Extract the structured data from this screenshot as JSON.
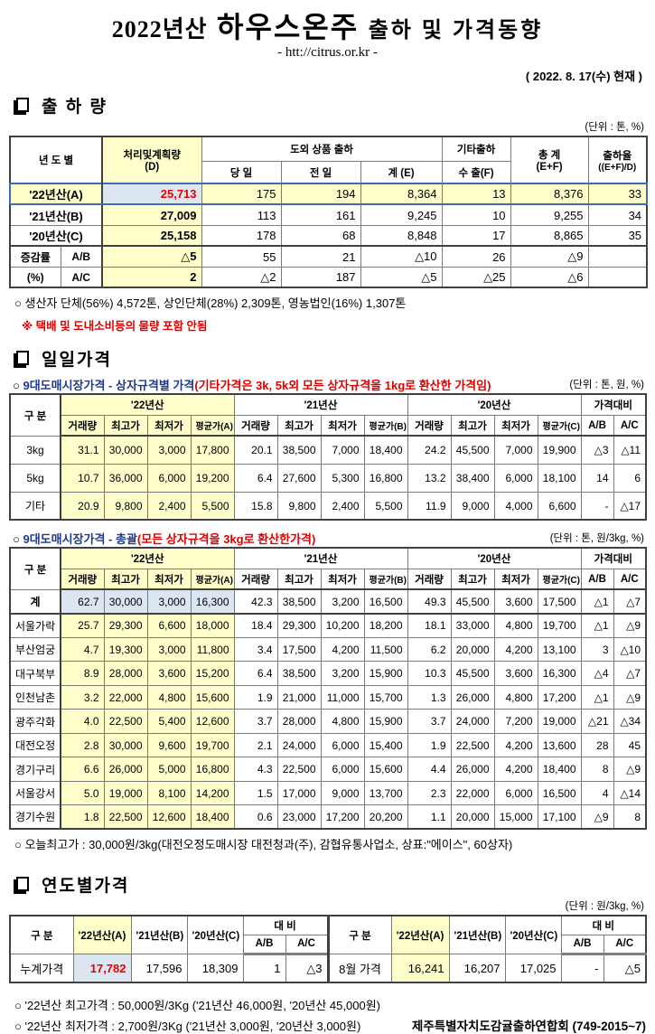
{
  "header": {
    "year": "2022년산",
    "product": "하우스온주",
    "subject": "출하 및 가격동향",
    "url": "- htt://citrus.or.kr -",
    "asof": "( 2022. 8. 17(수) 현재 )"
  },
  "shipment": {
    "title": "출 하 량",
    "unit": "(단위 : 톤, %)",
    "headers": {
      "year_col": "년 도 별",
      "plan1": "처리및계획량",
      "plan2": "(D)",
      "group": "도외 상품 출하",
      "today": "당 일",
      "prev": "전 일",
      "sum": "계 (E)",
      "etc": "기타출하",
      "export": "수 출(F)",
      "total1": "총  계",
      "total2": "(E+F)",
      "rate1": "출하율",
      "rate2": "((E+F)/D)"
    },
    "rows": [
      {
        "lbl": "'22년산(A)",
        "cls": "r22",
        "c": [
          "25,713",
          "175",
          "194",
          "8,364",
          "13",
          "8,376",
          "33"
        ]
      },
      {
        "lbl": "'21년산(B)",
        "c": [
          "27,009",
          "113",
          "161",
          "9,245",
          "10",
          "9,255",
          "34"
        ]
      },
      {
        "lbl": "'20년산(C)",
        "cls": "sep",
        "c": [
          "25,158",
          "178",
          "68",
          "8,848",
          "17",
          "8,865",
          "35"
        ]
      },
      {
        "g": "증감률",
        "sub": "A/B",
        "c": [
          "△5",
          "55",
          "21",
          "△10",
          "26",
          "△9",
          ""
        ]
      },
      {
        "g": "(%)",
        "sub": "A/C",
        "c": [
          "2",
          "△2",
          "187",
          "△5",
          "△25",
          "△6",
          ""
        ]
      }
    ],
    "note_bullet": "○",
    "note_producer": "생산자 단체(56%)  4,572톤,    상인단체(28%)  2,309톤,   영농법인(16%)   1,307톤",
    "note_red": "※ 택배 및 도내소비등의 물량 포함 안됨"
  },
  "daily": {
    "title": "일일가격",
    "sub1": {
      "bullet": "○",
      "label": "9대도매시장가격 - 상자규격별 가격",
      "paren": "(기타가격은 3k, 5k외 모든 상자규격을 1kg로 환산한 가격임)",
      "unit": "(단위 : 톤,  원, %)"
    },
    "sub2": {
      "bullet": "○",
      "label": "9대도매시장가격 - 총괄",
      "paren": "(모든 상자규격을 3kg로 환산한가격)",
      "unit": "(단위 : 톤, 원/3kg, %)"
    },
    "headers": {
      "gubun": "구  분",
      "y22": "'22년산",
      "y21": "'21년산",
      "y20": "'20년산",
      "cmp": "가격대비",
      "vol": "거래량",
      "high": "최고가",
      "low": "최저가",
      "avgA": "평균가(A)",
      "avgB": "평균가(B)",
      "avgC": "평균가(C)",
      "ab": "A/B",
      "ac": "A/C"
    },
    "by_size_rows": [
      {
        "lbl": "3kg",
        "c": [
          "31.1",
          "30,000",
          "3,000",
          "17,800",
          "20.1",
          "38,500",
          "7,000",
          "18,400",
          "24.2",
          "45,500",
          "7,000",
          "19,900",
          "△3",
          "△11"
        ]
      },
      {
        "lbl": "5kg",
        "c": [
          "10.7",
          "36,000",
          "6,000",
          "19,200",
          "6.4",
          "27,600",
          "5,300",
          "16,800",
          "13.2",
          "38,400",
          "6,000",
          "18,100",
          "14",
          "6"
        ]
      },
      {
        "lbl": "기타",
        "c": [
          "20.9",
          "9,800",
          "2,400",
          "5,500",
          "15.8",
          "9,800",
          "2,400",
          "5,500",
          "11.9",
          "9,000",
          "4,000",
          "6,600",
          "-",
          "△17"
        ]
      }
    ],
    "overall_rows": [
      {
        "lbl": "계",
        "cls": "sum",
        "c": [
          "62.7",
          "30,000",
          "3,000",
          "16,300",
          "42.3",
          "38,500",
          "3,200",
          "16,500",
          "49.3",
          "45,500",
          "3,600",
          "17,500",
          "△1",
          "△7"
        ]
      },
      {
        "lbl": "서울가락",
        "c": [
          "25.7",
          "29,300",
          "6,600",
          "18,000",
          "18.4",
          "29,300",
          "10,200",
          "18,200",
          "18.1",
          "33,000",
          "4,800",
          "19,700",
          "△1",
          "△9"
        ]
      },
      {
        "lbl": "부산엄궁",
        "c": [
          "4.7",
          "19,300",
          "3,000",
          "11,800",
          "3.4",
          "17,500",
          "4,200",
          "11,500",
          "6.2",
          "20,000",
          "4,200",
          "13,100",
          "3",
          "△10"
        ]
      },
      {
        "lbl": "대구북부",
        "c": [
          "8.9",
          "28,000",
          "3,600",
          "15,200",
          "6.4",
          "38,500",
          "3,200",
          "15,900",
          "10.3",
          "45,500",
          "3,600",
          "16,300",
          "△4",
          "△7"
        ]
      },
      {
        "lbl": "인천남촌",
        "c": [
          "3.2",
          "22,000",
          "4,800",
          "15,600",
          "1.9",
          "21,000",
          "11,000",
          "15,700",
          "1.3",
          "26,000",
          "4,800",
          "17,200",
          "△1",
          "△9"
        ]
      },
      {
        "lbl": "광주각화",
        "c": [
          "4.0",
          "22,500",
          "5,400",
          "12,600",
          "3.7",
          "28,000",
          "4,800",
          "15,900",
          "3.7",
          "24,000",
          "7,200",
          "19,000",
          "△21",
          "△34"
        ]
      },
      {
        "lbl": "대전오정",
        "c": [
          "2.8",
          "30,000",
          "9,600",
          "19,700",
          "2.1",
          "24,000",
          "6,000",
          "15,400",
          "1.9",
          "22,500",
          "4,200",
          "13,600",
          "28",
          "45"
        ]
      },
      {
        "lbl": "경기구리",
        "c": [
          "6.6",
          "26,000",
          "5,000",
          "16,800",
          "4.3",
          "22,500",
          "6,000",
          "15,600",
          "4.4",
          "26,000",
          "4,200",
          "18,400",
          "8",
          "△9"
        ]
      },
      {
        "lbl": "서울강서",
        "c": [
          "5.0",
          "19,000",
          "8,100",
          "14,200",
          "1.5",
          "17,000",
          "9,000",
          "13,700",
          "2.3",
          "22,000",
          "6,000",
          "16,500",
          "4",
          "△14"
        ]
      },
      {
        "lbl": "경기수원",
        "c": [
          "1.8",
          "22,500",
          "12,600",
          "18,400",
          "0.6",
          "23,000",
          "17,200",
          "20,200",
          "1.1",
          "20,000",
          "15,000",
          "17,100",
          "△9",
          "8"
        ]
      }
    ],
    "note_bullet": "○",
    "note_high": "오늘최고가 : 30,000원/3kg(대전오정도매시장  대전청과(주),  감협유통사업소,   상표:\"에이스\",   60상자)"
  },
  "yearly": {
    "title": "연도별가격",
    "unit": "(단위 : 원/3kg, %)",
    "headers": {
      "gubun": "구  분",
      "a": "'22년산(A)",
      "b": "'21년산(B)",
      "c": "'20년산(C)",
      "cmp": "대  비",
      "ab": "A/B",
      "ac": "A/C"
    },
    "left": {
      "lbl": "누계가격",
      "a": "17,782",
      "b": "17,596",
      "c": "18,309",
      "ab": "1",
      "ac": "△3"
    },
    "right": {
      "lbl": "8월 가격",
      "a": "16,241",
      "b": "16,207",
      "c": "17,025",
      "ab": "-",
      "ac": "△5"
    },
    "note_bullet": "○",
    "note1": "'22년산 최고가격 : 50,000원/3Kg ('21년산 46,000원, '20년산 45,000원)",
    "note2": "'22년산 최저가격 :  2,700원/3Kg ('21년산  3,000원, '20년산  3,000원)",
    "publisher": "제주특별자치도감귤출하연합회 (749-2015~7)"
  }
}
